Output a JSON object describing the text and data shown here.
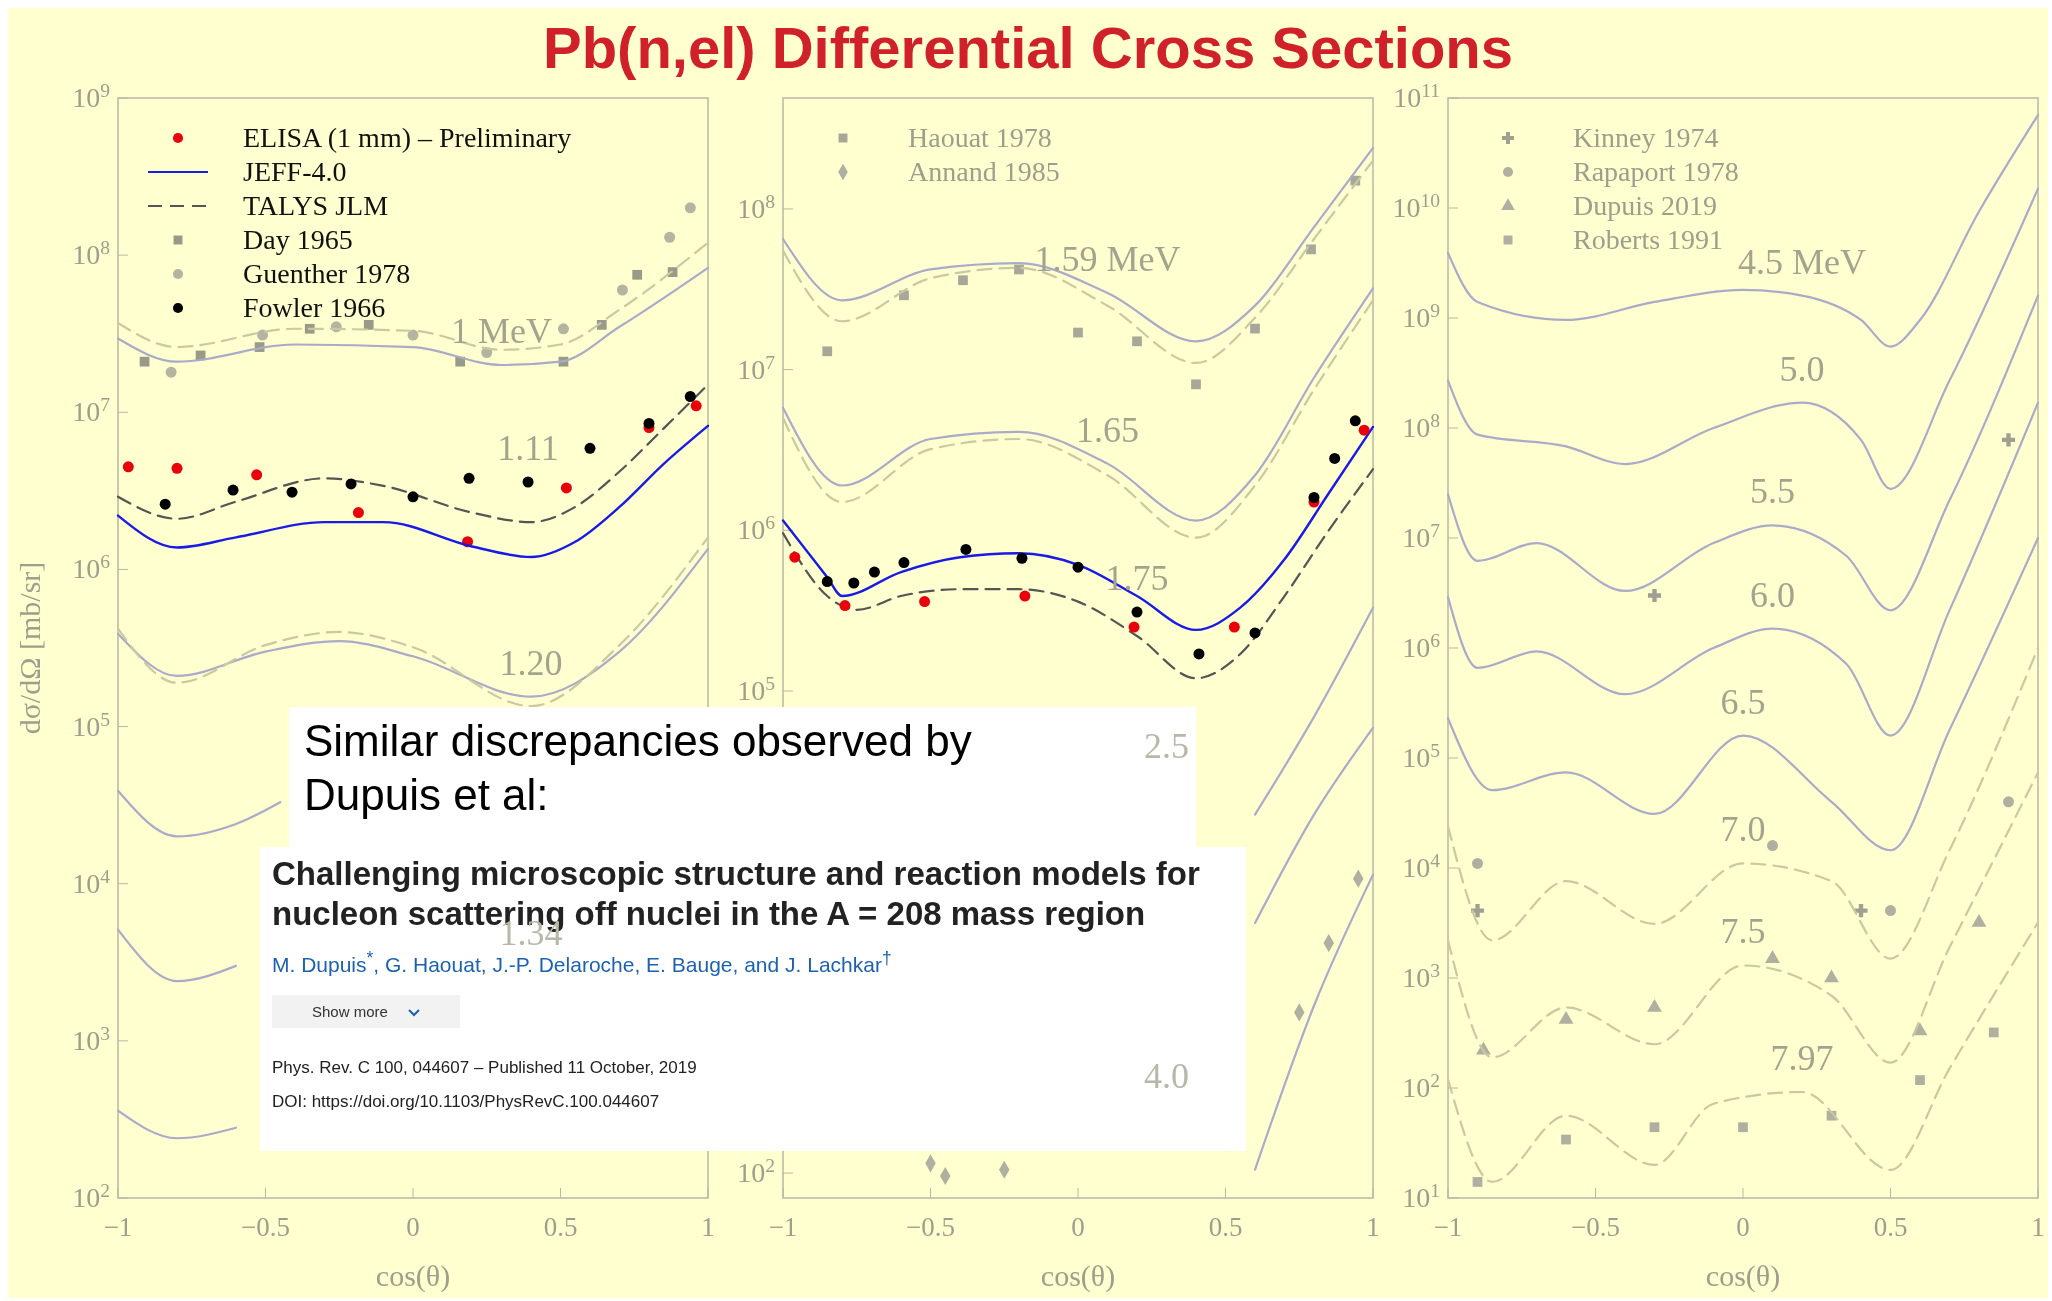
{
  "chart_data": [
    {
      "type": "line",
      "title": "Pb(n,el) Differential Cross Sections",
      "xlabel": "cos(θ)",
      "ylabel": "dσ/dΩ [mb/sr]",
      "log": "y",
      "legend": "top left",
      "xlim": [
        -1,
        1
      ],
      "ylim": [
        100,
        1000000000
      ],
      "xticks": [
        -1,
        -0.5,
        0,
        0.5,
        1
      ],
      "yticks": [
        {
          "value": 100,
          "label": "10$^{2}$"
        },
        {
          "value": 1000,
          "label": "10$^{3}$"
        },
        {
          "value": 10000,
          "label": "10$^{4}$"
        },
        {
          "value": 100000,
          "label": "10$^{5}$"
        },
        {
          "value": 1000000,
          "label": "10$^{6}$"
        },
        {
          "value": 10000000,
          "label": "10$^{7}$"
        },
        {
          "value": 100000000,
          "label": "10$^{8}$"
        },
        {
          "value": 1000000000,
          "label": "10$^{9}$"
        }
      ],
      "series": [
        {
          "name": "ELISA (1 mm) – Preliminary",
          "type": "scatter",
          "marker": "circle",
          "color": "#e8000b",
          "x": [
            -0.965,
            -0.8,
            -0.53,
            -0.185,
            0.185,
            0.52,
            0.8,
            0.96
          ],
          "values": [
            4500000,
            4400000,
            4000000,
            2300000,
            1500000,
            3300000,
            8000000,
            11000000
          ]
        },
        {
          "name": "JEFF-4.0",
          "line_style": "solid",
          "color": "#1a1ae6",
          "x": [
            -1,
            -0.8,
            -0.6,
            -0.3,
            -0.1,
            0.2,
            0.4,
            0.55,
            0.7,
            0.85,
            1
          ],
          "values": [
            2200000,
            1380000,
            1600000,
            2000000,
            2000000,
            1400000,
            1200000,
            1500000,
            2500000,
            4700000,
            8200000
          ]
        },
        {
          "name": "TALYS JLM",
          "line_style": "dashed",
          "color": "#555555",
          "x": [
            -1,
            -0.8,
            -0.6,
            -0.3,
            -0.1,
            0.2,
            0.4,
            0.55,
            0.7,
            0.85,
            1
          ],
          "values": [
            2900000,
            2100000,
            2700000,
            3800000,
            3400000,
            2300000,
            2000000,
            2500000,
            4200000,
            7900000,
            15000000
          ]
        },
        {
          "name": "Day 1965",
          "type": "scatter",
          "marker": "square",
          "color": "#9a9a88",
          "x": [
            -0.91,
            -0.72,
            -0.52,
            -0.35,
            -0.15,
            0.16,
            0.51,
            0.64,
            0.76,
            0.88
          ],
          "values": [
            21000000,
            23000000,
            26000000,
            34000000,
            36000000,
            21000000,
            21000000,
            36000000,
            75000000,
            78000000
          ]
        },
        {
          "name": "Guenther 1978",
          "type": "scatter",
          "marker": "circle",
          "color": "#b4b4a0",
          "x": [
            -0.82,
            -0.51,
            -0.26,
            0,
            0.25,
            0.51,
            0.71,
            0.87,
            0.94
          ],
          "values": [
            18000000,
            31000000,
            35000000,
            31000000,
            24000000,
            34000000,
            60000000,
            130000000,
            200000000
          ]
        },
        {
          "name": "Fowler 1966",
          "type": "scatter",
          "marker": "circle",
          "color": "#000000",
          "x": [
            -0.84,
            -0.61,
            -0.41,
            -0.21,
            0,
            0.19,
            0.39,
            0.6,
            0.8,
            0.94
          ],
          "values": [
            2600000,
            3200000,
            3100000,
            3500000,
            2900000,
            3800000,
            3600000,
            5900000,
            8500000,
            12600000
          ]
        },
        {
          "line_style": "solid",
          "color": "#aaabc8",
          "x": [
            -1,
            -0.8,
            -0.4,
            0,
            0.3,
            0.5,
            0.7,
            1
          ],
          "values": [
            29500000,
            21000000,
            27000000,
            26000000,
            20000000,
            21000000,
            35000000,
            83000000
          ]
        },
        {
          "line_style": "dashed",
          "color": "#c9c9a2",
          "x": [
            -1,
            -0.8,
            -0.4,
            0,
            0.3,
            0.5,
            0.7,
            1
          ],
          "values": [
            37000000,
            26000000,
            34000000,
            33000000,
            25000000,
            27000000,
            45000000,
            120000000
          ]
        },
        {
          "line_style": "solid",
          "color": "#aaabc8",
          "x": [
            -1,
            -0.8,
            -0.5,
            -0.25,
            0,
            0.4,
            0.7,
            1
          ],
          "values": [
            390000,
            210000,
            300000,
            350000,
            280000,
            155000,
            300000,
            1350000
          ]
        },
        {
          "line_style": "dashed",
          "color": "#c9c9a2",
          "x": [
            -1,
            -0.8,
            -0.5,
            -0.25,
            0,
            0.4,
            0.7,
            1
          ],
          "values": [
            420000,
            190000,
            330000,
            400000,
            320000,
            135000,
            330000,
            1600000
          ]
        },
        {
          "line_style": "solid",
          "color": "#aaabc8",
          "x": [
            -1,
            -0.8,
            -0.6,
            -0.45
          ],
          "values": [
            39000,
            20000,
            24000,
            33000
          ]
        },
        {
          "line_style": "solid",
          "color": "#aaabc8",
          "x": [
            -1,
            -0.8,
            -0.6
          ],
          "values": [
            5100,
            2400,
            3000
          ]
        },
        {
          "line_style": "solid",
          "color": "#aaabc8",
          "x": [
            -1,
            -0.8,
            -0.6
          ],
          "values": [
            360,
            240,
            280
          ]
        }
      ],
      "annotations": [
        {
          "text": "1 MeV",
          "x": 0.3,
          "y": 20000000
        },
        {
          "text": "1.11",
          "x": 0.39,
          "y": 3600000
        },
        {
          "text": "1.20",
          "x": 0.4,
          "y": 155000
        },
        "Similar discrepancies observed by Dupuis et al:",
        "Challenging microscopic structure and reaction models for nucleon scattering off nuclei in the A = 208 mass region",
        "M. Dupuis$^{*}$, G. Haouat, J.-P. Delaroche, E. Bauge, and J. Lachkar$^{†}$",
        "Show more",
        "Phys. Rev. C 100, 044607 – Published 11 October, 2019",
        "DOI: https://doi.org/10.1103/PhysRevC.100.044607",
        "1.34"
      ]
    },
    {
      "type": "line",
      "xlabel": "cos(θ)",
      "log": "y",
      "legend": "top left",
      "xlim": [
        -1,
        1
      ],
      "ylim": [
        70,
        490000000
      ],
      "xticks": [
        -1,
        -0.5,
        0,
        0.5,
        1
      ],
      "yticks": [
        {
          "value": 100,
          "label": "10$^{2}$"
        },
        {
          "value": 1000,
          "label": null
        },
        {
          "value": 10000,
          "label": null
        },
        {
          "value": 100000,
          "label": "10$^{5}$"
        },
        {
          "value": 1000000,
          "label": "10$^{6}$"
        },
        {
          "value": 10000000,
          "label": "10$^{7}$"
        },
        {
          "value": 100000000,
          "label": "10$^{8}$"
        }
      ],
      "series": [
        {
          "name": "Haouat 1978",
          "type": "scatter",
          "marker": "square",
          "color": "#a8a898",
          "x": [
            -0.85,
            -0.59,
            -0.39,
            -0.2,
            0,
            0.2,
            0.4,
            0.6,
            0.79,
            0.94
          ],
          "values": [
            13000000,
            29000000,
            36000000,
            42000000,
            17000000,
            15000000,
            8100000,
            18000000,
            56000000,
            150000000
          ]
        },
        {
          "name": "Annand 1985",
          "type": "scatter",
          "marker": "diamond",
          "color": "#b0b0a0",
          "x": [
            -0.5,
            -0.45,
            -0.25,
            0.75,
            0.85,
            0.95
          ],
          "values": [
            115,
            96,
            105,
            1000,
            2700,
            6800
          ]
        },
        {
          "line_style": "solid",
          "color": "#aaabc8",
          "x": [
            -1,
            -0.8,
            -0.5,
            -0.2,
            0.1,
            0.4,
            0.6,
            0.8,
            1
          ],
          "values": [
            65000000,
            27000000,
            42000000,
            46000000,
            30000000,
            15000000,
            25000000,
            77000000,
            240000000
          ]
        },
        {
          "line_style": "dashed",
          "color": "#c9c9a2",
          "x": [
            -1,
            -0.8,
            -0.5,
            -0.2,
            0.1,
            0.4,
            0.6,
            0.8,
            1
          ],
          "values": [
            55000000,
            20000000,
            37000000,
            43000000,
            25000000,
            11000000,
            21000000,
            65000000,
            200000000
          ]
        },
        {
          "line_style": "solid",
          "color": "#aaabc8",
          "x": [
            -1,
            -0.8,
            -0.5,
            -0.2,
            0.1,
            0.4,
            0.6,
            0.8,
            1
          ],
          "values": [
            5800000,
            1900000,
            3700000,
            4100000,
            2600000,
            1150000,
            2200000,
            8900000,
            32000000
          ]
        },
        {
          "line_style": "dashed",
          "color": "#c9c9a2",
          "x": [
            -1,
            -0.8,
            -0.5,
            -0.2,
            0.1,
            0.4,
            0.6,
            0.8,
            1
          ],
          "values": [
            5000000,
            1500000,
            3200000,
            3700000,
            2200000,
            900000,
            1900000,
            7500000,
            27000000
          ]
        },
        {
          "line_style": "solid",
          "color": "#1a1ae6",
          "x": [
            -1,
            -0.85,
            -0.8,
            -0.6,
            -0.4,
            -0.2,
            0,
            0.2,
            0.4,
            0.55,
            0.7,
            0.85,
            1
          ],
          "values": [
            1150000,
            510000,
            390000,
            550000,
            680000,
            720000,
            610000,
            390000,
            240000,
            330000,
            660000,
            1700000,
            4400000
          ]
        },
        {
          "line_style": "dashed",
          "color": "#555555",
          "x": [
            -1,
            -0.85,
            -0.75,
            -0.6,
            -0.4,
            -0.2,
            0,
            0.2,
            0.4,
            0.55,
            0.7,
            0.85,
            1
          ],
          "values": [
            960000,
            390000,
            320000,
            390000,
            430000,
            430000,
            360000,
            220000,
            120000,
            170000,
            390000,
            1000000,
            2400000
          ]
        },
        {
          "type": "scatter",
          "marker": "circle",
          "color": "#e8000b",
          "x": [
            -0.96,
            -0.79,
            -0.52,
            -0.18,
            0.19,
            0.53,
            0.8,
            0.97
          ],
          "values": [
            680000,
            340000,
            360000,
            390000,
            250000,
            250000,
            1500000,
            4200000
          ]
        },
        {
          "type": "scatter",
          "marker": "circle",
          "color": "#000000",
          "x": [
            -0.85,
            -0.76,
            -0.69,
            -0.59,
            -0.38,
            -0.19,
            0,
            0.2,
            0.41,
            0.6,
            0.8,
            0.87,
            0.94
          ],
          "values": [
            480000,
            470000,
            550000,
            630000,
            760000,
            670000,
            590000,
            310000,
            170000,
            230000,
            1600000,
            2800000,
            4800000
          ]
        },
        {
          "line_style": "solid",
          "color": "#aaabc8",
          "x": [
            0.6,
            0.8,
            1
          ],
          "values": [
            17000,
            69000,
            330000
          ]
        },
        {
          "line_style": "solid",
          "color": "#aaabc8",
          "x": [
            0.6,
            0.8,
            1
          ],
          "values": [
            3600,
            17000,
            59000
          ]
        },
        {
          "line_style": "solid",
          "color": "#aaabc8",
          "x": [
            0.6,
            0.8,
            1
          ],
          "values": [
            105,
            1100,
            7200
          ]
        }
      ],
      "annotations": [
        {
          "text": "1.59 MeV",
          "x": 0.1,
          "y": 30000000
        },
        {
          "text": "1.65",
          "x": 0.1,
          "y": 2600000
        },
        {
          "text": "1.75",
          "x": 0.2,
          "y": 310000
        },
        "2.5",
        "4.0"
      ]
    },
    {
      "type": "line",
      "xlabel": "cos(θ)",
      "log": "y",
      "legend": "top left",
      "xlim": [
        -1,
        1
      ],
      "ylim": [
        10,
        100000000000
      ],
      "xticks": [
        -1,
        -0.5,
        0,
        0.5,
        1
      ],
      "yticks": [
        {
          "value": 10,
          "label": "10$^{1}$"
        },
        {
          "value": 100,
          "label": "10$^{2}$"
        },
        {
          "value": 1000,
          "label": "10$^{3}$"
        },
        {
          "value": 10000,
          "label": "10$^{4}$"
        },
        {
          "value": 100000,
          "label": "10$^{5}$"
        },
        {
          "value": 1000000,
          "label": "10$^{6}$"
        },
        {
          "value": 10000000,
          "label": "10$^{7}$"
        },
        {
          "value": 100000000,
          "label": "10$^{8}$"
        },
        {
          "value": 1000000000,
          "label": "10$^{9}$"
        },
        {
          "value": 10000000000,
          "label": "10$^{10}$"
        },
        {
          "value": 100000000000,
          "label": "10$^{11}$"
        }
      ],
      "series": [
        {
          "name": "Kinney 1974",
          "type": "scatter",
          "marker": "cross",
          "color": "#a0a090",
          "x": [
            -0.9,
            -0.3,
            0.4,
            0.9
          ],
          "values": [
            4100,
            3000000,
            4100,
            78000000
          ]
        },
        {
          "name": "Rapaport 1978",
          "type": "scatter",
          "marker": "circle",
          "color": "#b0b0a0",
          "x": [
            -0.9,
            0.1,
            0.5,
            0.9
          ],
          "values": [
            11000,
            16000,
            4100,
            40000
          ]
        },
        {
          "name": "Dupuis 2019",
          "type": "scatter",
          "marker": "triangle",
          "color": "#b0b0a0",
          "x": [
            -0.88,
            -0.6,
            -0.3,
            0.1,
            0.3,
            0.6,
            0.8
          ],
          "values": [
            220,
            420,
            540,
            1500,
            1000,
            330,
            3200
          ]
        },
        {
          "name": "Roberts 1991",
          "type": "scatter",
          "marker": "square",
          "color": "#b0b0a0",
          "x": [
            -0.9,
            -0.6,
            -0.3,
            0,
            0.3,
            0.6,
            0.85
          ],
          "values": [
            14,
            34,
            44,
            44,
            56,
            118,
            320
          ]
        },
        {
          "line_style": "solid",
          "color": "#aaabc8",
          "x": [
            -1,
            -0.9,
            -0.6,
            -0.3,
            0,
            0.2,
            0.4,
            0.5,
            0.6,
            0.8,
            1
          ],
          "values": [
            3900000000,
            1400000000,
            960000000,
            1400000000,
            1800000000,
            1600000000,
            960000000,
            550000000,
            960000000,
            9300000000,
            70000000000
          ]
        },
        {
          "line_style": "solid",
          "color": "#aaabc8",
          "x": [
            -1,
            -0.9,
            -0.6,
            -0.4,
            -0.1,
            0.2,
            0.4,
            0.5,
            0.7,
            1
          ],
          "values": [
            270000000,
            87000000,
            68000000,
            47000000,
            100000000,
            170000000,
            78000000,
            28000000,
            270000000,
            15000000000
          ]
        },
        {
          "line_style": "solid",
          "color": "#aaabc8",
          "x": [
            -1,
            -0.9,
            -0.7,
            -0.4,
            -0.1,
            0.1,
            0.35,
            0.5,
            0.7,
            1
          ],
          "values": [
            25000000,
            6200000,
            9000000,
            3300000,
            9000000,
            13000000,
            6900000,
            2200000,
            22000000,
            1600000000
          ]
        },
        {
          "line_style": "solid",
          "color": "#aaabc8",
          "x": [
            -1,
            -0.9,
            -0.7,
            -0.4,
            -0.1,
            0.1,
            0.35,
            0.5,
            0.7,
            1
          ],
          "values": [
            2900000,
            660000,
            930000,
            380000,
            1000000,
            1500000,
            720000,
            160000,
            2200000,
            170000000
          ]
        },
        {
          "line_style": "solid",
          "color": "#aaabc8",
          "x": [
            -1,
            -0.85,
            -0.6,
            -0.3,
            0,
            0.3,
            0.5,
            0.7,
            1
          ],
          "values": [
            230000,
            51000,
            74000,
            31000,
            160000,
            40000,
            14500,
            180000,
            10000000
          ]
        },
        {
          "line_style": "dashed",
          "color": "#c9c9a2",
          "x": [
            -1,
            -0.85,
            -0.6,
            -0.3,
            0,
            0.3,
            0.5,
            0.7,
            1
          ],
          "values": [
            24000,
            2200,
            7600,
            3100,
            11000,
            7600,
            1500,
            14500,
            1000000
          ]
        },
        {
          "line_style": "dashed",
          "color": "#c9c9a2",
          "x": [
            -1,
            -0.85,
            -0.6,
            -0.3,
            0,
            0.3,
            0.5,
            0.7,
            1
          ],
          "values": [
            2200,
            190,
            540,
            250,
            1300,
            690,
            170,
            1900,
            74000
          ]
        },
        {
          "line_style": "dashed",
          "color": "#c9c9a2",
          "x": [
            -1,
            -0.85,
            -0.6,
            -0.3,
            -0.1,
            0.2,
            0.5,
            0.7,
            1
          ],
          "values": [
            120,
            14,
            56,
            20,
            72,
            92,
            18,
            150,
            3200
          ]
        }
      ],
      "annotations": [
        {
          "text": "4.5 MeV",
          "x": 0.2,
          "y": 1600000000
        },
        {
          "text": "5.0",
          "x": 0.2,
          "y": 170000000
        },
        {
          "text": "5.5",
          "x": 0.1,
          "y": 13000000
        },
        {
          "text": "6.0",
          "x": 0.1,
          "y": 1500000
        },
        {
          "text": "6.5",
          "x": 0,
          "y": 160000
        },
        {
          "text": "7.0",
          "x": 0,
          "y": 11000
        },
        {
          "text": "7.5",
          "x": 0,
          "y": 1300
        },
        {
          "text": "7.97",
          "x": 0.2,
          "y": 92
        }
      ]
    }
  ]
}
